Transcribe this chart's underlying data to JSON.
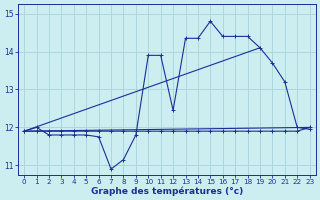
{
  "xlabel": "Graphe des températures (°c)",
  "bg_color": "#cceef0",
  "grid_color": "#aad8dc",
  "line_color": "#1a2f9a",
  "xlim": [
    -0.5,
    23.5
  ],
  "ylim": [
    10.75,
    15.25
  ],
  "yticks": [
    11,
    12,
    13,
    14,
    15
  ],
  "xticks": [
    0,
    1,
    2,
    3,
    4,
    5,
    6,
    7,
    8,
    9,
    10,
    11,
    12,
    13,
    14,
    15,
    16,
    17,
    18,
    19,
    20,
    21,
    22,
    23
  ],
  "curve_x": [
    0,
    1,
    2,
    3,
    4,
    5,
    6,
    7,
    8,
    9,
    10,
    11,
    12,
    13,
    14,
    15,
    16,
    17,
    18,
    19,
    20,
    21,
    22,
    23
  ],
  "curve_y": [
    11.9,
    12.0,
    11.8,
    11.8,
    11.8,
    11.8,
    11.75,
    10.9,
    11.15,
    11.8,
    13.9,
    13.9,
    12.45,
    14.35,
    14.35,
    14.8,
    14.4,
    14.4,
    14.4,
    14.1,
    13.7,
    13.2,
    12.0,
    11.95
  ],
  "flat_x": [
    0,
    1,
    2,
    3,
    4,
    5,
    6,
    7,
    8,
    9,
    10,
    11,
    12,
    13,
    14,
    15,
    16,
    17,
    18,
    19,
    20,
    21,
    22,
    23
  ],
  "flat_y": [
    11.9,
    11.9,
    11.9,
    11.9,
    11.9,
    11.9,
    11.9,
    11.9,
    11.9,
    11.9,
    11.9,
    11.9,
    11.9,
    11.9,
    11.9,
    11.9,
    11.9,
    11.9,
    11.9,
    11.9,
    11.9,
    11.9,
    11.9,
    12.0
  ],
  "trend1_x": [
    0,
    23
  ],
  "trend1_y": [
    11.9,
    12.0
  ],
  "trend2_x": [
    0,
    19
  ],
  "trend2_y": [
    11.9,
    14.1
  ]
}
